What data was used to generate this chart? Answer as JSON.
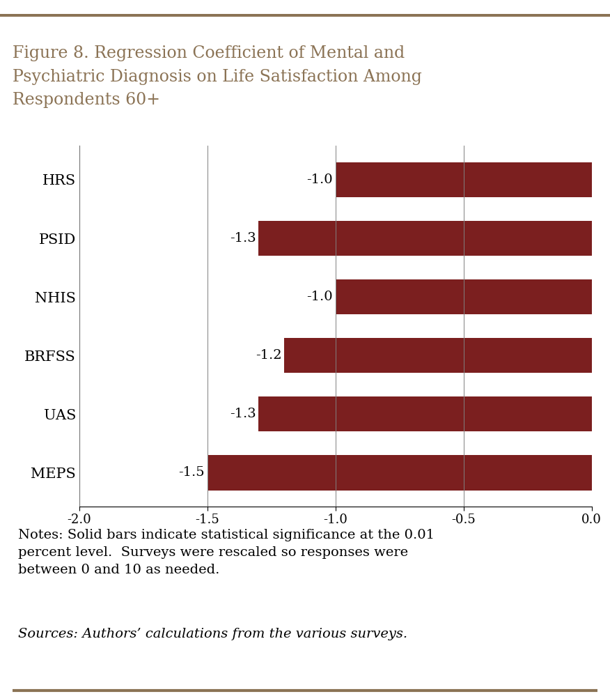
{
  "title_line1": "Figure 8. Regression Coefficient of Mental and",
  "title_line2": "Psychiatric Diagnosis on Life Satisfaction Among",
  "title_line3": "Respondents 60+",
  "categories": [
    "HRS",
    "PSID",
    "NHIS",
    "BRFSS",
    "UAS",
    "MEPS"
  ],
  "values": [
    -1.0,
    -1.3,
    -1.0,
    -1.2,
    -1.3,
    -1.5
  ],
  "labels": [
    "-1.0",
    "-1.3",
    "-1.0",
    "-1.2",
    "-1.3",
    "-1.5"
  ],
  "bar_color": "#7B1F1F",
  "xlim": [
    -2.0,
    0.0
  ],
  "xticks": [
    -2.0,
    -1.5,
    -1.0,
    -0.5,
    0.0
  ],
  "title_color": "#8B7355",
  "title_fontsize": 17,
  "notes_text": "Notes: Solid bars indicate statistical significance at the 0.01\npercent level.  Surveys were rescaled so responses were\nbetween 0 and 10 as needed.",
  "sources_text": "Sources: Authors’ calculations from the various surveys.",
  "background_color": "#FFFFFF",
  "top_bar_color": "#8B7355",
  "label_fontsize": 14,
  "category_fontsize": 15,
  "tick_fontsize": 13,
  "notes_fontsize": 14,
  "sources_fontsize": 14
}
